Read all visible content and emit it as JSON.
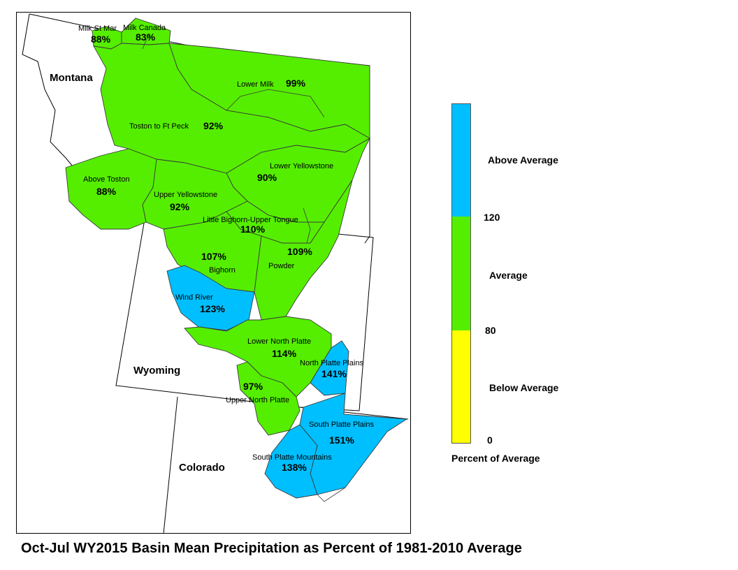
{
  "states": [
    {
      "name": "Montana"
    },
    {
      "name": "Wyoming"
    },
    {
      "name": "Colorado"
    }
  ],
  "basins": [
    {
      "name": "Milk St Mar",
      "pct": "88%",
      "category": "average"
    },
    {
      "name": "Milk Canada",
      "pct": "83%",
      "category": "average"
    },
    {
      "name": "Lower Milk",
      "pct": "99%",
      "category": "average"
    },
    {
      "name": "Toston to Ft Peck",
      "pct": "92%",
      "category": "average"
    },
    {
      "name": "Above Toston",
      "pct": "88%",
      "category": "average"
    },
    {
      "name": "Lower Yellowstone",
      "pct": "90%",
      "category": "average"
    },
    {
      "name": "Upper Yellowstone",
      "pct": "92%",
      "category": "average"
    },
    {
      "name": "Little Bighorn-Upper Tongue",
      "pct": "110%",
      "category": "average"
    },
    {
      "name": "Bighorn",
      "pct": "107%",
      "category": "average"
    },
    {
      "name": "Powder",
      "pct": "109%",
      "category": "average"
    },
    {
      "name": "Wind River",
      "pct": "123%",
      "category": "above"
    },
    {
      "name": "Lower North Platte",
      "pct": "114%",
      "category": "average"
    },
    {
      "name": "North Platte Plains",
      "pct": "141%",
      "category": "above"
    },
    {
      "name": "Upper North Platte",
      "pct": "97%",
      "category": "average"
    },
    {
      "name": "South Platte Plains",
      "pct": "151%",
      "category": "above"
    },
    {
      "name": "South Platte Mountains",
      "pct": "138%",
      "category": "above"
    }
  ],
  "legend": {
    "title": "Percent of Average",
    "classes": [
      {
        "label": "Above Average",
        "color": "#00BFFF",
        "range": [
          120,
          null
        ]
      },
      {
        "label": "Average",
        "color": "#55EE00",
        "range": [
          80,
          120
        ]
      },
      {
        "label": "Below Average",
        "color": "#FFFF00",
        "range": [
          0,
          80
        ]
      }
    ],
    "ticks": [
      "120",
      "80",
      "0"
    ]
  },
  "colors": {
    "above": "#00BFFF",
    "average": "#55EE00",
    "below": "#FFFF00"
  },
  "caption": "Oct-Jul WY2015 Basin Mean Precipitation as Percent of 1981-2010 Average"
}
